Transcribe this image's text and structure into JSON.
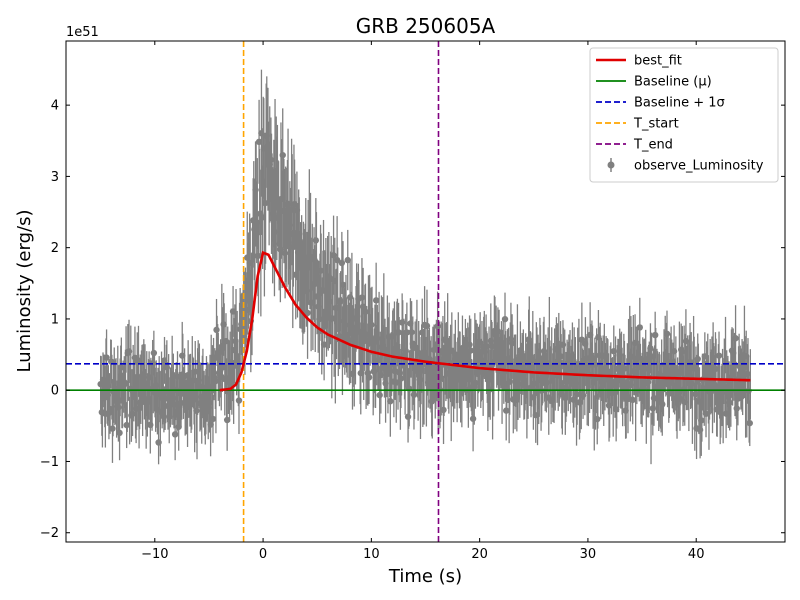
{
  "chart_data": {
    "type": "line",
    "title": "GRB 250605A",
    "xlabel": "Time (s)",
    "ylabel": "Luminosity (erg/s)",
    "y_offset_label": "1e51",
    "xlim": [
      -18.2,
      48.2
    ],
    "ylim": [
      -2.13,
      4.9
    ],
    "x_ticks": [
      -10,
      0,
      10,
      20,
      30,
      40
    ],
    "x_tick_labels": [
      "−10",
      "0",
      "10",
      "20",
      "30",
      "40"
    ],
    "y_ticks": [
      -2,
      -1,
      0,
      1,
      2,
      3,
      4
    ],
    "y_tick_labels": [
      "−2",
      "−1",
      "0",
      "1",
      "2",
      "3",
      "4"
    ],
    "grid": false,
    "legend_position": "top-right",
    "legend": [
      {
        "label": "best_fit",
        "color": "#e00000",
        "style": "solid"
      },
      {
        "label": "Baseline (μ)",
        "color": "#008000",
        "style": "solid"
      },
      {
        "label": "Baseline + 1σ",
        "color": "#0000c8",
        "style": "dashed"
      },
      {
        "label": "T_start",
        "color": "#ffa500",
        "style": "dashed"
      },
      {
        "label": "T_end",
        "color": "#800080",
        "style": "dashed"
      },
      {
        "label": "observe_Luminosity",
        "color": "#808080",
        "style": "errorbar"
      }
    ],
    "baseline_mu": 0.0,
    "baseline_plus_sigma": 0.37,
    "t_start": -1.8,
    "t_end": 16.2,
    "data_range": [
      -15,
      45
    ],
    "best_fit": {
      "x": [
        -4,
        -3,
        -2.5,
        -2,
        -1.5,
        -1,
        -0.5,
        0,
        0.5,
        1,
        2,
        3,
        4,
        5,
        6,
        8,
        10,
        12,
        15,
        20,
        25,
        30,
        35,
        40,
        45
      ],
      "y": [
        0.0,
        0.02,
        0.08,
        0.25,
        0.55,
        1.0,
        1.6,
        1.93,
        1.9,
        1.75,
        1.45,
        1.2,
        1.02,
        0.88,
        0.78,
        0.64,
        0.54,
        0.47,
        0.4,
        0.31,
        0.25,
        0.21,
        0.18,
        0.16,
        0.14
      ]
    },
    "observations": {
      "description": "noisy luminosity points with error bars, roughly 1100 samples from -15 to 45 s",
      "envelope": {
        "x": [
          -15,
          -5,
          -2,
          0,
          2,
          5,
          10,
          16,
          25,
          45
        ],
        "y": [
          0.0,
          0.0,
          0.6,
          3.0,
          2.5,
          1.4,
          0.5,
          0.2,
          0.15,
          0.1
        ]
      }
    },
    "colors": {
      "fit": "#e00000",
      "baseline": "#008000",
      "sigma": "#0000c8",
      "tstart": "#ffa500",
      "tend": "#800080",
      "points": "#808080"
    }
  }
}
